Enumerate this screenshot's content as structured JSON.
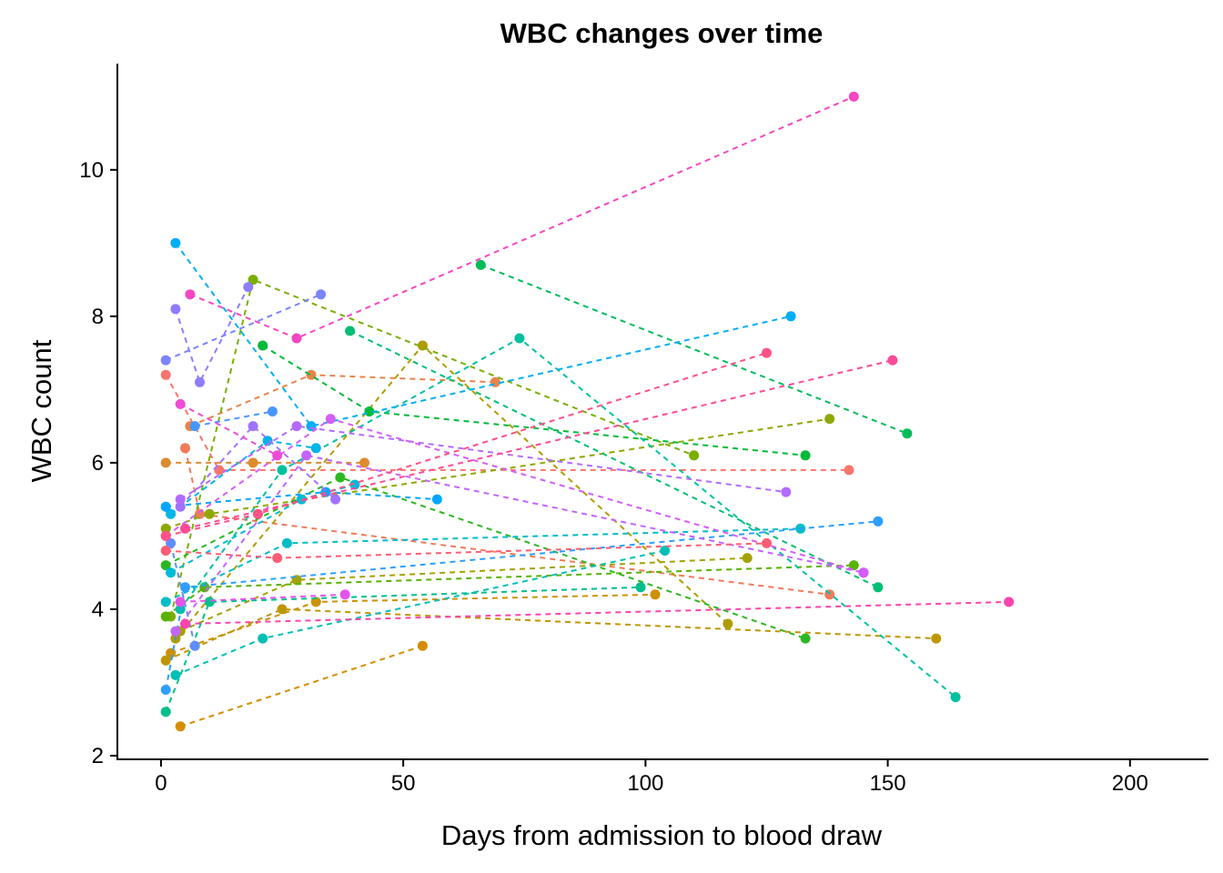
{
  "chart_data": {
    "type": "line",
    "title": "WBC changes over time",
    "xlabel": "Days from admission to blood draw",
    "ylabel": "WBC count",
    "xlim": [
      -9,
      216
    ],
    "ylim": [
      1.95,
      11.45
    ],
    "xticks": [
      0,
      50,
      100,
      150,
      200
    ],
    "yticks": [
      2,
      4,
      6,
      8,
      10
    ],
    "grid": false,
    "legend": "none",
    "line_style": "dashed",
    "series": [
      {
        "color": "#F8766D",
        "x": [
          1,
          12,
          142
        ],
        "y": [
          7.2,
          5.9,
          5.9
        ]
      },
      {
        "color": "#F07B5B",
        "x": [
          5,
          8,
          138
        ],
        "y": [
          6.2,
          5.3,
          4.2
        ]
      },
      {
        "color": "#E8834A",
        "x": [
          6,
          31,
          69
        ],
        "y": [
          6.5,
          7.2,
          7.1
        ]
      },
      {
        "color": "#DD8B2E",
        "x": [
          1,
          19,
          42
        ],
        "y": [
          6.0,
          6.0,
          6.0
        ]
      },
      {
        "color": "#D58D00",
        "x": [
          4,
          54
        ],
        "y": [
          2.4,
          3.5
        ]
      },
      {
        "color": "#CC9100",
        "x": [
          2,
          32,
          102
        ],
        "y": [
          3.4,
          4.1,
          4.2
        ]
      },
      {
        "color": "#BF9600",
        "x": [
          1,
          25,
          160
        ],
        "y": [
          3.3,
          4.0,
          3.6
        ]
      },
      {
        "color": "#B09C00",
        "x": [
          3,
          54,
          117
        ],
        "y": [
          3.6,
          7.6,
          3.8
        ]
      },
      {
        "color": "#A3A200",
        "x": [
          4,
          28,
          121
        ],
        "y": [
          3.7,
          4.4,
          4.7
        ]
      },
      {
        "color": "#8FA800",
        "x": [
          1,
          10,
          138
        ],
        "y": [
          5.1,
          5.3,
          6.6
        ]
      },
      {
        "color": "#7AAE00",
        "x": [
          2,
          19,
          110
        ],
        "y": [
          3.9,
          8.5,
          6.1
        ]
      },
      {
        "color": "#56B300",
        "x": [
          1,
          9,
          143
        ],
        "y": [
          3.9,
          4.3,
          4.6
        ]
      },
      {
        "color": "#2CB722",
        "x": [
          1,
          37,
          133
        ],
        "y": [
          4.6,
          5.8,
          3.6
        ]
      },
      {
        "color": "#00BA38",
        "x": [
          21,
          43,
          133
        ],
        "y": [
          7.6,
          6.7,
          6.1
        ]
      },
      {
        "color": "#00BC5A",
        "x": [
          66,
          154
        ],
        "y": [
          8.7,
          6.4
        ]
      },
      {
        "color": "#00BE74",
        "x": [
          39,
          148
        ],
        "y": [
          7.8,
          4.3
        ]
      },
      {
        "color": "#00BF8B",
        "x": [
          1,
          10,
          99
        ],
        "y": [
          2.6,
          4.1,
          4.3
        ]
      },
      {
        "color": "#00C0A0",
        "x": [
          4,
          25,
          74,
          164
        ],
        "y": [
          4.0,
          5.9,
          7.7,
          2.8
        ]
      },
      {
        "color": "#00BFB4",
        "x": [
          3,
          21,
          104
        ],
        "y": [
          3.1,
          3.6,
          4.8
        ]
      },
      {
        "color": "#00BDC7",
        "x": [
          1,
          26,
          132
        ],
        "y": [
          4.1,
          4.9,
          5.1
        ]
      },
      {
        "color": "#00BAD8",
        "x": [
          2,
          29,
          40
        ],
        "y": [
          4.5,
          5.5,
          5.7
        ]
      },
      {
        "color": "#00B5E7",
        "x": [
          2,
          22,
          32
        ],
        "y": [
          5.3,
          6.3,
          6.2
        ]
      },
      {
        "color": "#00AEF4",
        "x": [
          3,
          31,
          130
        ],
        "y": [
          9.0,
          6.5,
          8.0
        ]
      },
      {
        "color": "#00A6FF",
        "x": [
          1,
          34,
          57
        ],
        "y": [
          5.4,
          5.6,
          5.5
        ]
      },
      {
        "color": "#2C9FFF",
        "x": [
          1,
          5,
          148
        ],
        "y": [
          2.9,
          4.3,
          5.2
        ]
      },
      {
        "color": "#4896FF",
        "x": [
          7,
          23
        ],
        "y": [
          6.5,
          6.7
        ]
      },
      {
        "color": "#5E8DFF",
        "x": [
          2,
          7
        ],
        "y": [
          4.9,
          3.5
        ]
      },
      {
        "color": "#7A84FF",
        "x": [
          1,
          33
        ],
        "y": [
          7.4,
          8.3
        ]
      },
      {
        "color": "#8E7DFF",
        "x": [
          3,
          8,
          18
        ],
        "y": [
          8.1,
          7.1,
          8.4
        ]
      },
      {
        "color": "#A172FF",
        "x": [
          4,
          19,
          36
        ],
        "y": [
          5.4,
          6.5,
          5.5
        ]
      },
      {
        "color": "#B36BFF",
        "x": [
          4,
          28,
          129
        ],
        "y": [
          5.5,
          6.5,
          5.6
        ]
      },
      {
        "color": "#C464FF",
        "x": [
          3,
          30,
          145
        ],
        "y": [
          3.7,
          6.1,
          4.5
        ]
      },
      {
        "color": "#D55EF6",
        "x": [
          1,
          35,
          145
        ],
        "y": [
          5.0,
          6.6,
          4.5
        ]
      },
      {
        "color": "#E353E8",
        "x": [
          4,
          38
        ],
        "y": [
          4.1,
          4.2
        ]
      },
      {
        "color": "#EE4CD6",
        "x": [
          4,
          24
        ],
        "y": [
          6.8,
          6.1
        ]
      },
      {
        "color": "#F546C3",
        "x": [
          6,
          28,
          143
        ],
        "y": [
          8.3,
          7.7,
          11.0
        ]
      },
      {
        "color": "#FB44AE",
        "x": [
          5,
          175
        ],
        "y": [
          3.8,
          4.1
        ]
      },
      {
        "color": "#FF4A99",
        "x": [
          5,
          151
        ],
        "y": [
          5.1,
          7.4
        ]
      },
      {
        "color": "#FF5286",
        "x": [
          1,
          20,
          125
        ],
        "y": [
          5.0,
          5.3,
          7.5
        ]
      },
      {
        "color": "#FD5D73",
        "x": [
          1,
          24,
          125
        ],
        "y": [
          4.8,
          4.7,
          4.9
        ]
      }
    ]
  }
}
